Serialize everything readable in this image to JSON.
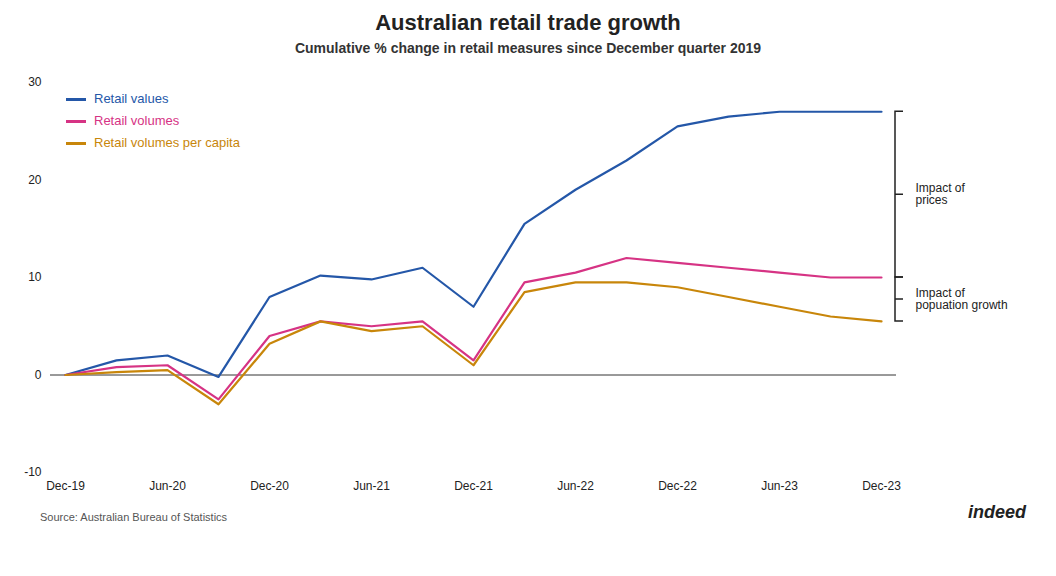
{
  "chart_data": {
    "type": "line",
    "title": "Australian retail trade growth",
    "subtitle": "Cumulative % change in retail measures since December quarter 2019",
    "source": "Source: Australian Bureau of Statistics",
    "brand": "indeed",
    "categories": [
      "Dec-19",
      null,
      "Jun-20",
      null,
      "Dec-20",
      null,
      "Jun-21",
      null,
      "Dec-21",
      null,
      "Jun-22",
      null,
      "Dec-22",
      null,
      "Jun-23",
      null,
      "Dec-23"
    ],
    "series": [
      {
        "name": "Retail values",
        "color": "#2457a8",
        "values": [
          0,
          1.5,
          2.0,
          -0.2,
          8.0,
          10.2,
          9.8,
          11.0,
          7.0,
          15.5,
          19.0,
          22.0,
          25.5,
          26.5,
          27.0,
          27.0,
          27.0
        ]
      },
      {
        "name": "Retail volumes",
        "color": "#d63384",
        "values": [
          0,
          0.8,
          1.0,
          -2.5,
          4.0,
          5.5,
          5.0,
          5.5,
          1.5,
          9.5,
          10.5,
          12.0,
          11.5,
          11.0,
          10.5,
          10.0,
          10.0
        ]
      },
      {
        "name": "Retail volumes per capita",
        "color": "#c8860a",
        "values": [
          0,
          0.3,
          0.5,
          -3.0,
          3.2,
          5.5,
          4.5,
          5.0,
          1.0,
          8.5,
          9.5,
          9.5,
          9.0,
          8.0,
          7.0,
          6.0,
          5.5
        ]
      }
    ],
    "ylim": [
      -10,
      30
    ],
    "yticks": [
      -10,
      0,
      10,
      20,
      30
    ],
    "grid": false,
    "legend": "upper left",
    "annotations": [
      {
        "text": "Impact of\nprices"
      },
      {
        "text": "Impact of\npopuation growth"
      }
    ]
  }
}
